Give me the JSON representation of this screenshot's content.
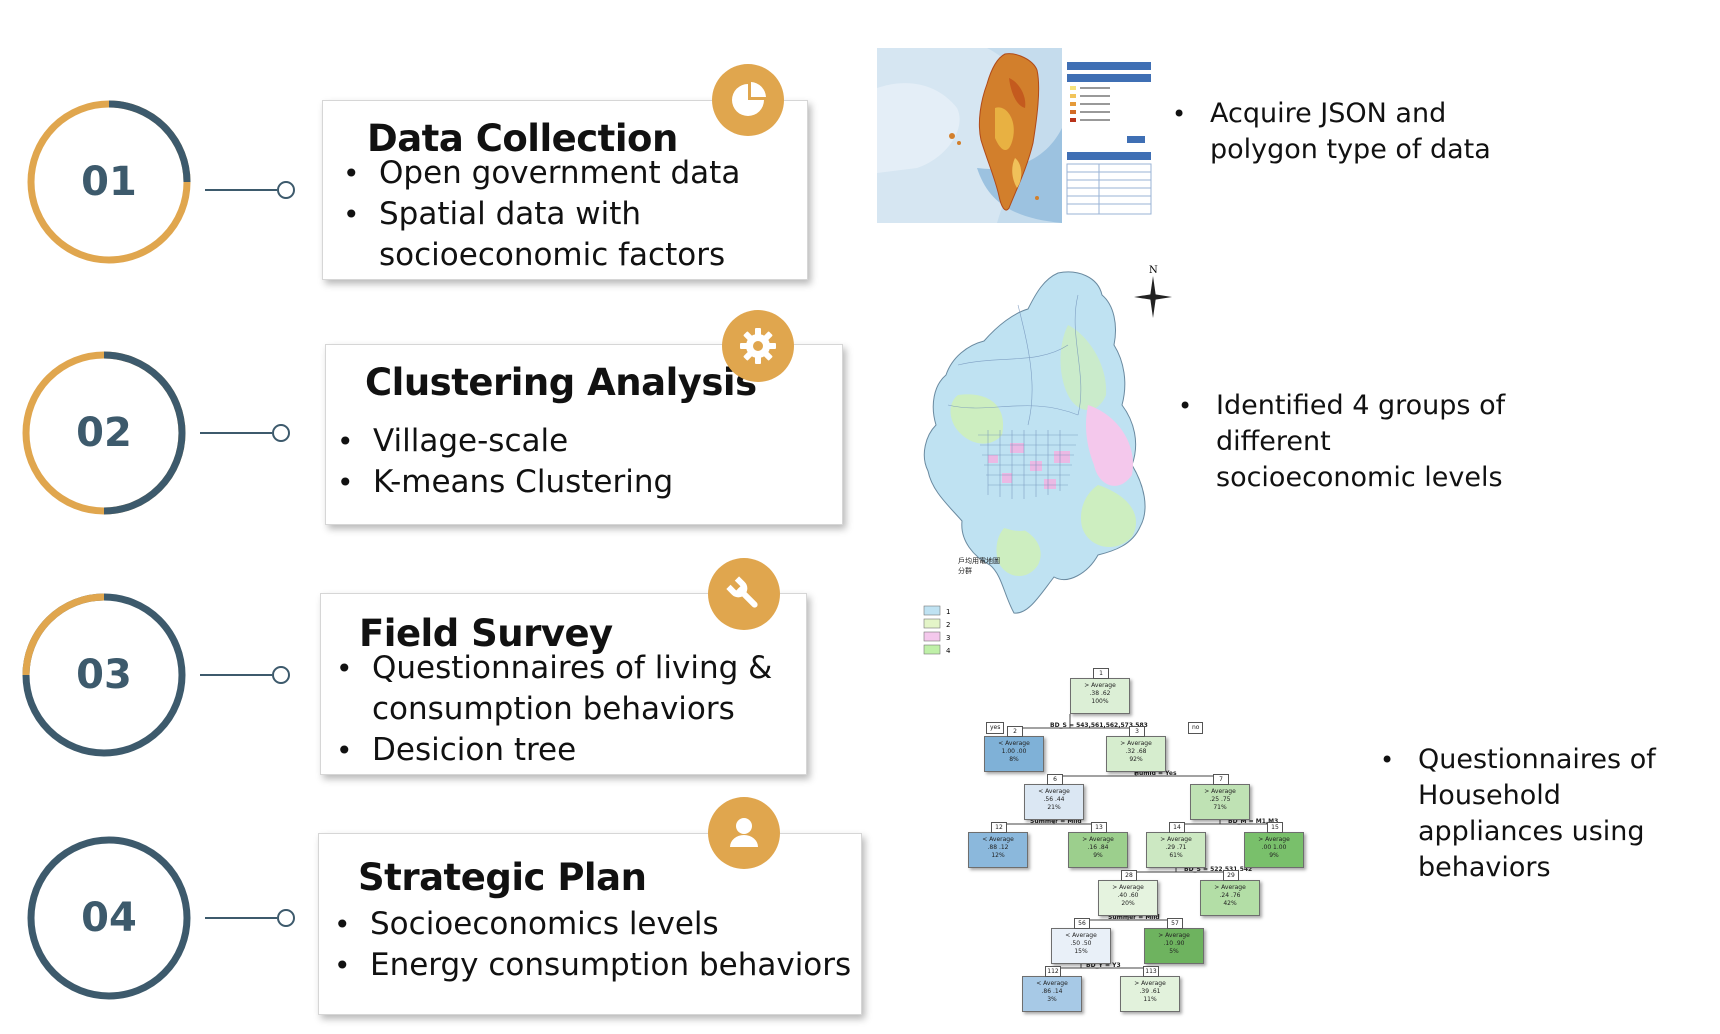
{
  "steps": [
    {
      "number": "01",
      "title": "Data Collection",
      "bullets": [
        "Open government data",
        "Spatial data with socioeconomic factors"
      ],
      "icon": "pie-chart-icon"
    },
    {
      "number": "02",
      "title": "Clustering Analysis",
      "bullets": [
        "Village-scale",
        "K-means Clustering"
      ],
      "icon": "gear-icon"
    },
    {
      "number": "03",
      "title": "Field Survey",
      "bullets": [
        "Questionnaires of living & consumption behaviors",
        "Desicion tree"
      ],
      "icon": "wrench-icon"
    },
    {
      "number": "04",
      "title": "Strategic Plan",
      "bullets": [
        "Socioeconomics levels",
        "Energy consumption behaviors"
      ],
      "icon": "person-icon"
    }
  ],
  "notes": [
    "Acquire JSON and polygon type of data",
    "Identified 4 groups of different socioeconomic levels",
    "Questionnaires of Household appliances using behaviors"
  ],
  "cluster_map": {
    "compass": "N",
    "legend_title": "戶均用電地圖",
    "legend_subtitle": "分群",
    "legend_items": [
      "1",
      "2",
      "3",
      "4"
    ]
  },
  "colors": {
    "ring_blue": "#3d5a6c",
    "ring_gold": "#e0a64e",
    "badge": "#e0a64e"
  },
  "tree": {
    "nodes": [
      {
        "id": "1",
        "label": "> Average",
        "vals": ".38 .62",
        "pct": "100%"
      },
      {
        "id": "2",
        "label": "< Average",
        "vals": "1.00 .00",
        "pct": "8%"
      },
      {
        "id": "3",
        "label": "> Average",
        "vals": ".32 .68",
        "pct": "92%"
      },
      {
        "id": "6",
        "label": "< Average",
        "vals": ".56 .44",
        "pct": "21%"
      },
      {
        "id": "7",
        "label": "> Average",
        "vals": ".25 .75",
        "pct": "71%"
      },
      {
        "id": "12",
        "label": "< Average",
        "vals": ".88 .12",
        "pct": "12%"
      },
      {
        "id": "13",
        "label": "> Average",
        "vals": ".16 .84",
        "pct": "9%"
      },
      {
        "id": "14",
        "label": "> Average",
        "vals": ".29 .71",
        "pct": "61%"
      },
      {
        "id": "15",
        "label": "> Average",
        "vals": ".00 1.00",
        "pct": "9%"
      },
      {
        "id": "28",
        "label": "> Average",
        "vals": ".40 .60",
        "pct": "20%"
      },
      {
        "id": "29",
        "label": "> Average",
        "vals": ".24 .76",
        "pct": "42%"
      },
      {
        "id": "56",
        "label": "< Average",
        "vals": ".50 .50",
        "pct": "15%"
      },
      {
        "id": "57",
        "label": "> Average",
        "vals": ".10 .90",
        "pct": "5%"
      },
      {
        "id": "112",
        "label": "< Average",
        "vals": ".86 .14",
        "pct": "3%"
      },
      {
        "id": "113",
        "label": "> Average",
        "vals": ".39 .61",
        "pct": "11%"
      }
    ],
    "splits": [
      "BD_S = 543,561,562,573,583",
      "Humid = Yes",
      "Summer = Mild",
      "BD_M = M1,M3",
      "BD_S = 522,531,542",
      "Summer = Mild",
      "BD_Y = Y3"
    ],
    "yes": "yes",
    "no": "no"
  }
}
